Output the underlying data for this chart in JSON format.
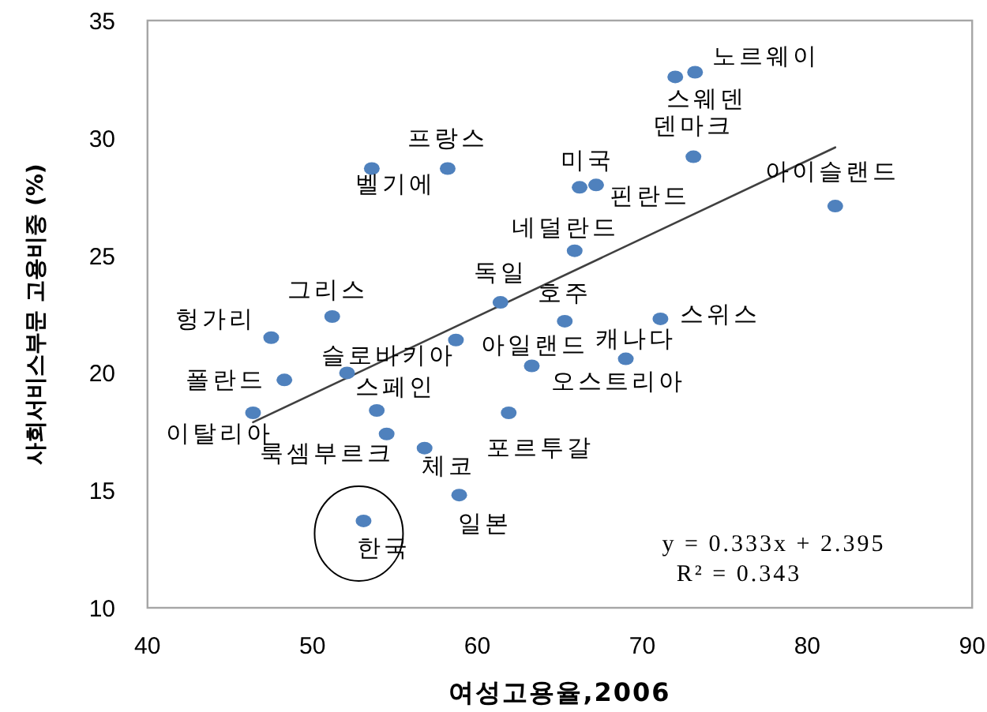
{
  "chart_data": {
    "type": "scatter",
    "xlabel": "여성고용율,2006",
    "ylabel": "사회서비스부문 고용비중 (%)",
    "xlim": [
      40,
      90
    ],
    "ylim": [
      10,
      35
    ],
    "xticks": [
      40,
      50,
      60,
      70,
      80,
      90
    ],
    "yticks": [
      10,
      15,
      20,
      25,
      30,
      35
    ],
    "marker": "circle",
    "series": [
      {
        "color": "#4f81bd",
        "x": [
          72.0,
          73.2,
          73.1,
          81.7,
          58.2,
          53.6,
          66.2,
          67.2,
          65.9,
          61.4,
          65.3,
          71.1,
          69.0,
          51.2,
          47.5,
          52.1,
          58.7,
          63.3,
          48.3,
          53.9,
          46.4,
          54.5,
          56.8,
          61.9,
          58.9,
          53.1
        ],
        "values": [
          32.6,
          32.8,
          29.2,
          27.1,
          28.7,
          28.7,
          27.9,
          28.0,
          25.2,
          23.0,
          22.2,
          22.3,
          20.6,
          22.4,
          21.5,
          20.0,
          21.4,
          20.3,
          19.7,
          18.4,
          18.3,
          17.4,
          16.8,
          18.3,
          14.8,
          13.7
        ]
      },
      {
        "type": "line",
        "color": "#404040",
        "marker": "none",
        "line_style": "solid",
        "x": [
          46.4,
          81.7
        ],
        "values": [
          17.9,
          29.6
        ]
      }
    ],
    "annotations": [
      {
        "text": "스웨덴",
        "x": 72.0,
        "y": 32.6
      },
      {
        "text": "노르웨이",
        "x": 73.2,
        "y": 32.8
      },
      {
        "text": "덴마크",
        "x": 73.1,
        "y": 29.2
      },
      {
        "text": "아이슬랜드",
        "x": 81.7,
        "y": 27.1
      },
      {
        "text": "프랑스",
        "x": 58.2,
        "y": 28.7
      },
      {
        "text": "벨기에",
        "x": 53.6,
        "y": 28.7
      },
      {
        "text": "미국",
        "x": 66.2,
        "y": 27.9
      },
      {
        "text": "핀란드",
        "x": 67.2,
        "y": 28.0
      },
      {
        "text": "네덜란드",
        "x": 65.9,
        "y": 25.2
      },
      {
        "text": "독일",
        "x": 61.4,
        "y": 23.0
      },
      {
        "text": "호주",
        "x": 65.3,
        "y": 22.2
      },
      {
        "text": "스위스",
        "x": 71.1,
        "y": 22.3
      },
      {
        "text": "캐나다",
        "x": 69.0,
        "y": 20.6
      },
      {
        "text": "그리스",
        "x": 51.2,
        "y": 22.4
      },
      {
        "text": "헝가리",
        "x": 47.5,
        "y": 21.5
      },
      {
        "text": "슬로바키아",
        "x": 52.1,
        "y": 20.0
      },
      {
        "text": "아일랜드",
        "x": 58.7,
        "y": 21.4
      },
      {
        "text": "오스트리아",
        "x": 63.3,
        "y": 20.3
      },
      {
        "text": "폴란드",
        "x": 48.3,
        "y": 19.7
      },
      {
        "text": "스페인",
        "x": 53.9,
        "y": 18.4
      },
      {
        "text": "이탈리아",
        "x": 46.4,
        "y": 18.3
      },
      {
        "text": "룩셈부르크",
        "x": 54.5,
        "y": 17.4
      },
      {
        "text": "체코",
        "x": 56.8,
        "y": 16.8
      },
      {
        "text": "포르투갈",
        "x": 61.9,
        "y": 18.3
      },
      {
        "text": "일본",
        "x": 58.9,
        "y": 14.8
      },
      {
        "text": "한국",
        "x": 53.1,
        "y": 13.7
      },
      "y = 0.333x + 2.395",
      "R² = 0.343"
    ]
  }
}
